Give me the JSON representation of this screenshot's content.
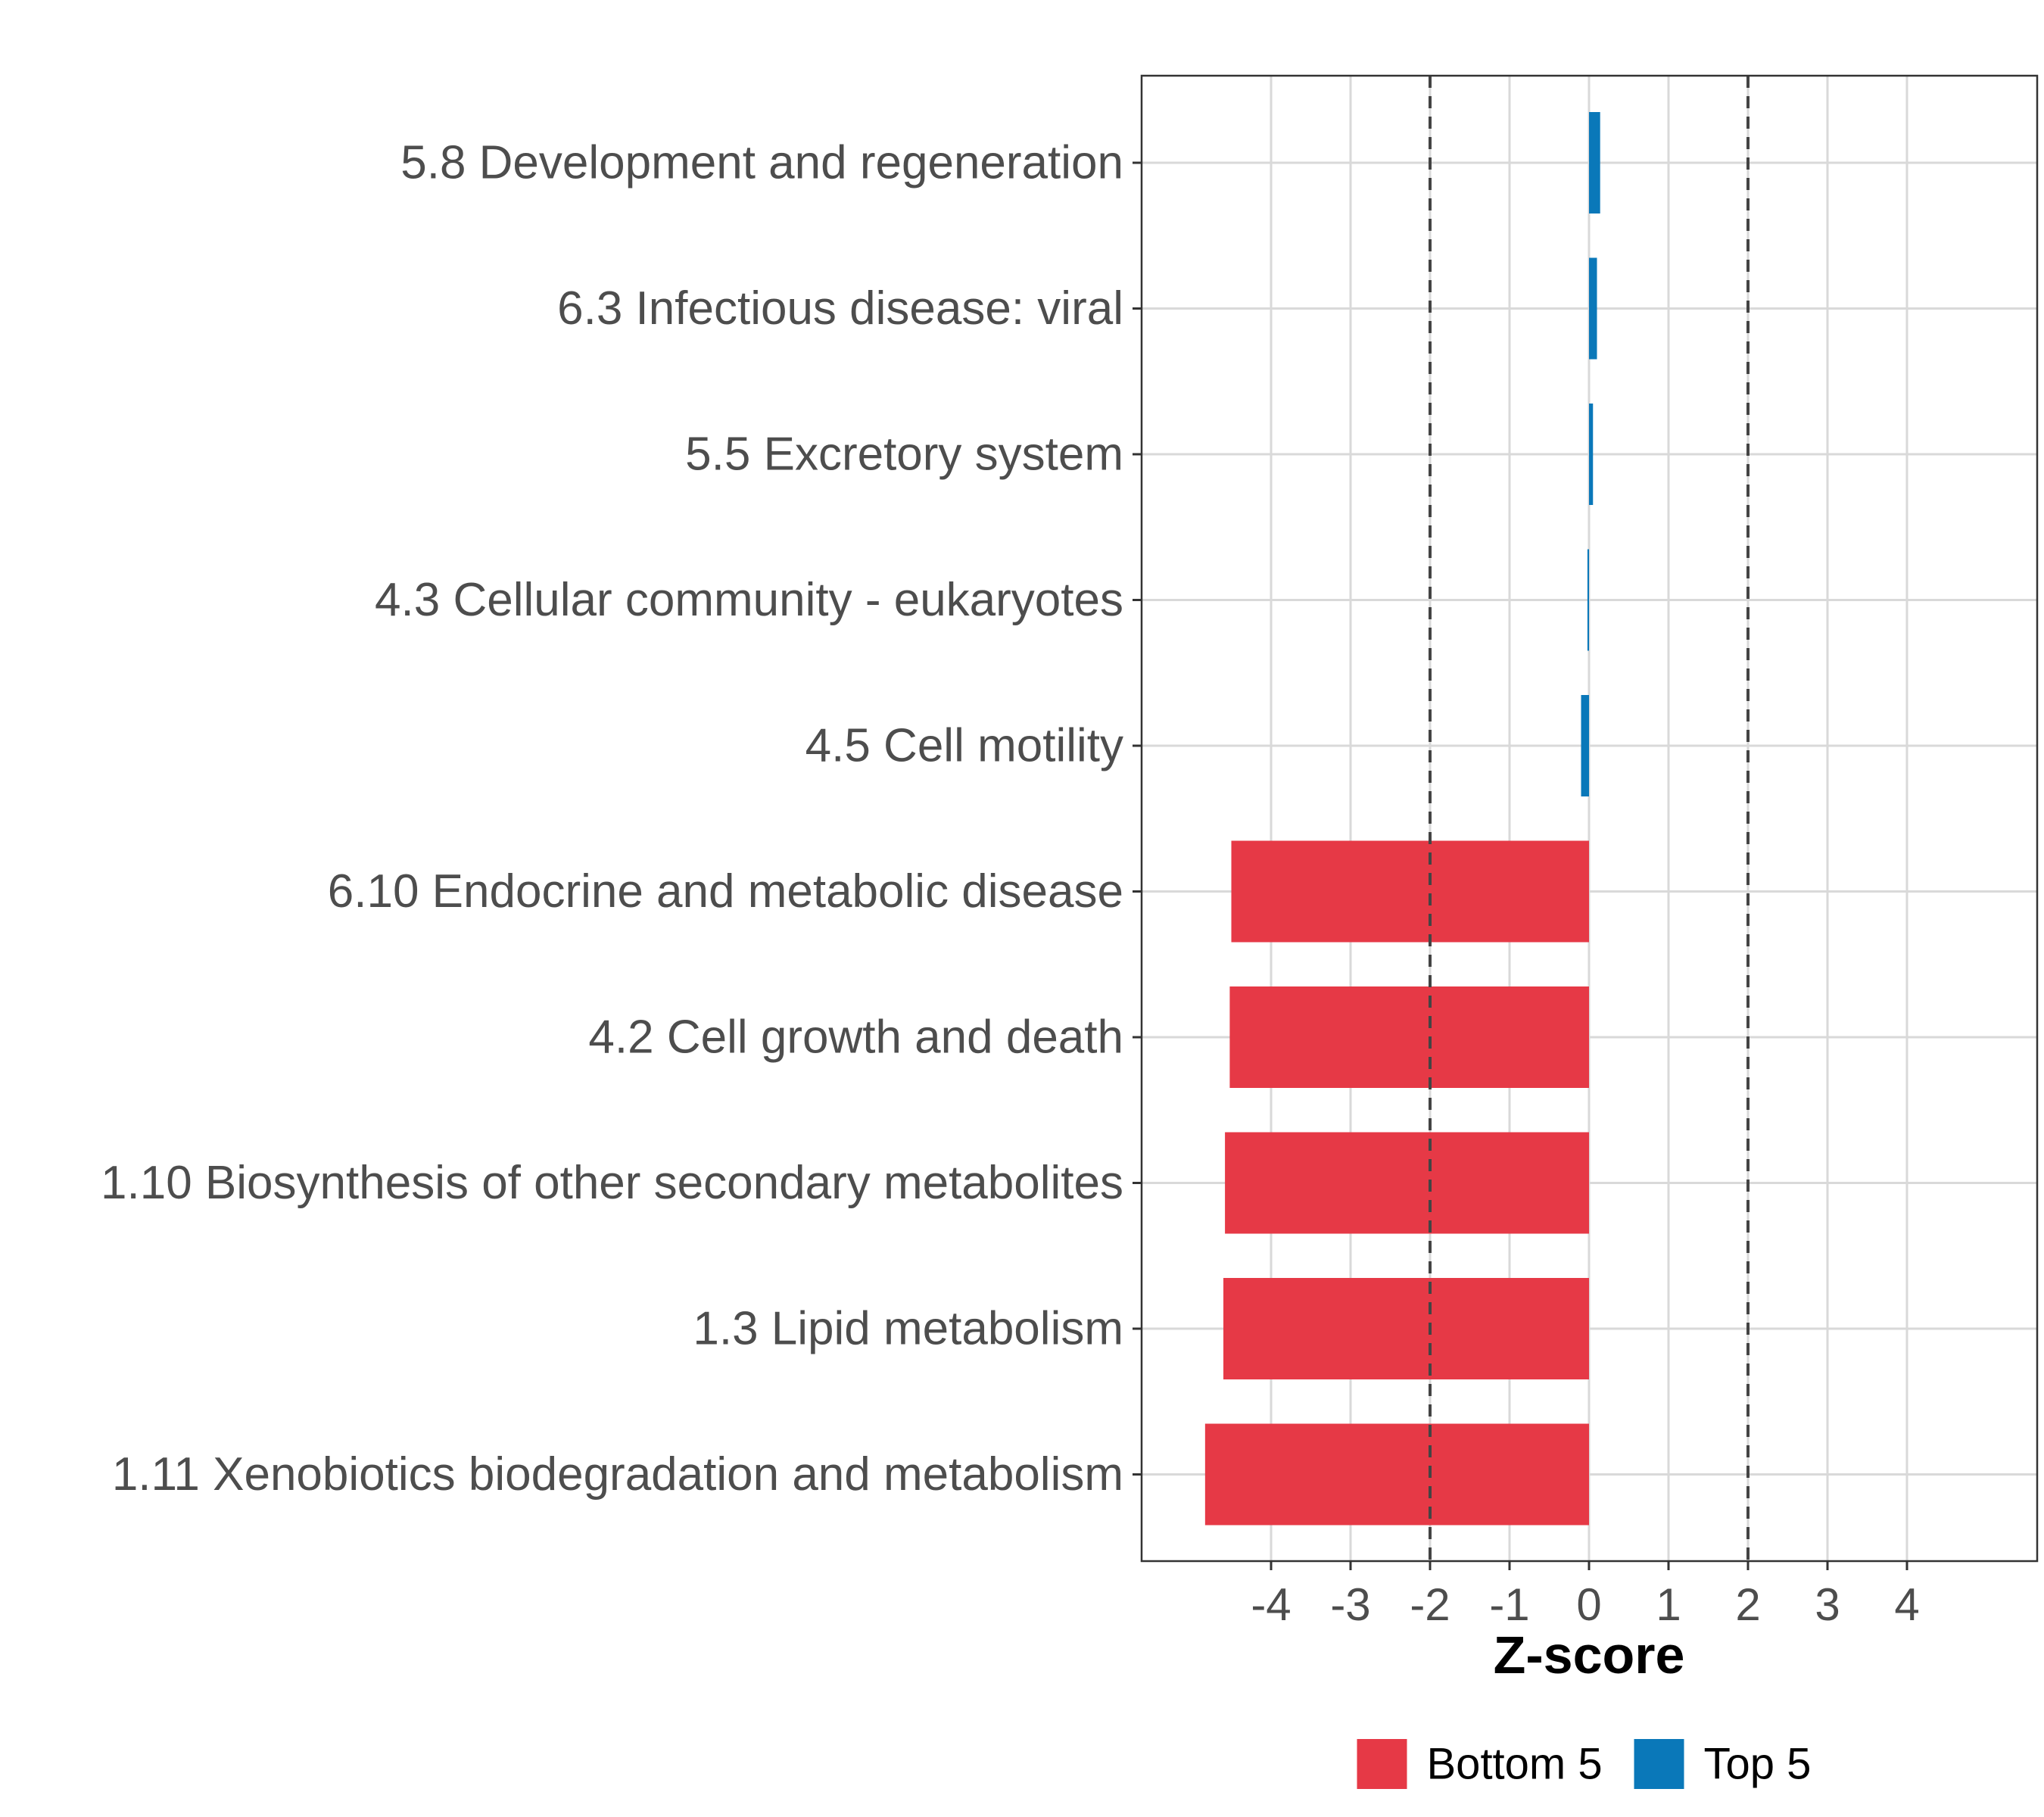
{
  "chart_data": {
    "type": "bar",
    "orientation": "horizontal",
    "title": "",
    "xlabel": "Z-score",
    "ylabel": "",
    "xlim": [
      -5.5,
      5.8
    ],
    "xticks": [
      -4,
      -3,
      -2,
      -1,
      0,
      1,
      2,
      3,
      4
    ],
    "xtick_labels": [
      "-4",
      "-3",
      "-2",
      "-1",
      "0",
      "1",
      "2",
      "3",
      "4"
    ],
    "reference_lines": [
      -2,
      2
    ],
    "grid": true,
    "categories": [
      "5.8 Development and regeneration",
      "6.3 Infectious disease: viral",
      "5.5 Excretory system",
      "4.3 Cellular community - eukaryotes",
      "4.5 Cell motility",
      "6.10 Endocrine and metabolic disease",
      "4.2 Cell growth and death",
      "1.10 Biosynthesis of other secondary metabolites",
      "1.3 Lipid metabolism",
      "1.11 Xenobiotics biodegradation and metabolism"
    ],
    "values": [
      0.14,
      0.1,
      0.05,
      -0.02,
      -0.1,
      -4.5,
      -4.52,
      -4.58,
      -4.6,
      -4.83
    ],
    "groups": [
      "Top 5",
      "Top 5",
      "Top 5",
      "Top 5",
      "Top 5",
      "Bottom 5",
      "Bottom 5",
      "Bottom 5",
      "Bottom 5",
      "Bottom 5"
    ],
    "legend": {
      "position": "bottom",
      "entries": [
        {
          "label": "Bottom 5",
          "color": "#e63946"
        },
        {
          "label": "Top 5",
          "color": "#0a78b9"
        }
      ]
    }
  }
}
